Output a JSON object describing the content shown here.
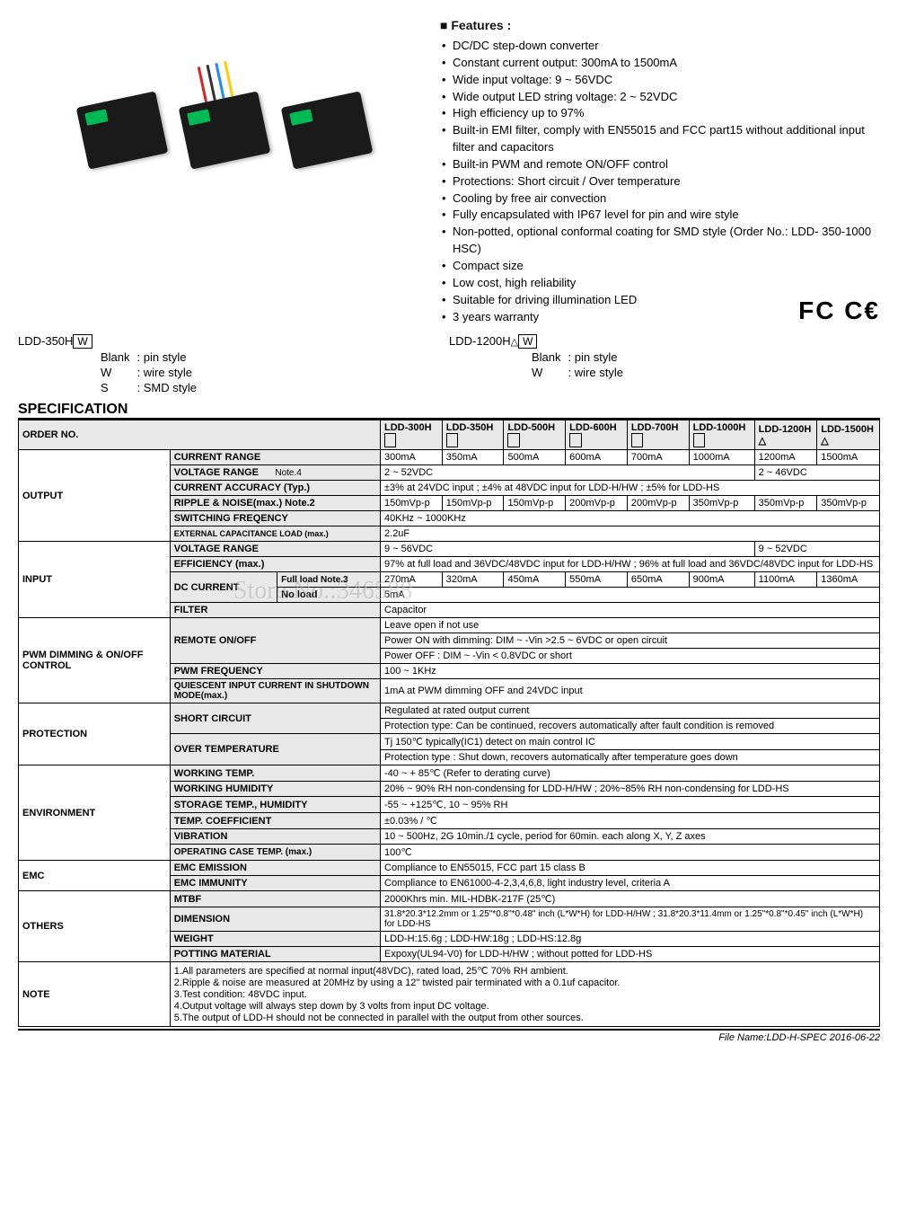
{
  "features": {
    "title": "Features :",
    "items": [
      "DC/DC step-down converter",
      "Constant current output: 300mA to 1500mA",
      "Wide input voltage: 9 ~ 56VDC",
      "Wide output LED string voltage: 2 ~ 52VDC",
      "High efficiency up to 97%",
      "Built-in EMI filter, comply with EN55015 and FCC part15 without additional input filter and capacitors",
      "Built-in PWM and remote ON/OFF control",
      "Protections: Short circuit / Over temperature",
      "Cooling by free air convection",
      "Fully encapsulated with IP67 level for pin and wire style",
      "Non-potted, optional conformal coating for SMD style (Order No.: LDD- 350-1000 HSC)",
      "Compact size",
      "Low cost, high reliability",
      "Suitable for driving illumination LED",
      "3 years warranty"
    ],
    "cert": "FC C€"
  },
  "models": {
    "left": {
      "name": "LDD-350H",
      "suffix": "W",
      "opts": [
        [
          "Blank",
          ": pin style"
        ],
        [
          "W",
          ": wire style"
        ],
        [
          "S",
          ": SMD style"
        ]
      ]
    },
    "right": {
      "name": "LDD-1200H",
      "suffix": "W",
      "opts": [
        [
          "Blank",
          ": pin style"
        ],
        [
          "W",
          ": wire style"
        ]
      ]
    }
  },
  "spec_title": "SPECIFICATION",
  "order_label": "ORDER NO.",
  "order": [
    "LDD-300H",
    "LDD-350H",
    "LDD-500H",
    "LDD-600H",
    "LDD-700H",
    "LDD-1000H",
    "LDD-1200H",
    "LDD-1500H"
  ],
  "output": {
    "cat": "OUTPUT",
    "current": {
      "label": "CURRENT RANGE",
      "vals": [
        "300mA",
        "350mA",
        "500mA",
        "600mA",
        "700mA",
        "1000mA",
        "1200mA",
        "1500mA"
      ]
    },
    "volt": {
      "label": "VOLTAGE RANGE",
      "note": "Note.4",
      "a": "2 ~ 52VDC",
      "b": "2 ~ 46VDC"
    },
    "acc": {
      "label": "CURRENT ACCURACY (Typ.)",
      "val": "±3% at 24VDC input ; ±4% at 48VDC input for LDD-H/HW ; ±5% for LDD-HS"
    },
    "ripple": {
      "label": "RIPPLE & NOISE(max.) Note.2",
      "vals": [
        "150mVp-p",
        "150mVp-p",
        "150mVp-p",
        "200mVp-p",
        "200mVp-p",
        "350mVp-p",
        "350mVp-p",
        "350mVp-p"
      ]
    },
    "freq": {
      "label": "SWITCHING FREQENCY",
      "val": "40KHz ~ 1000KHz"
    },
    "cap": {
      "label": "EXTERNAL CAPACITANCE LOAD (max.)",
      "val": "2.2uF"
    }
  },
  "input": {
    "cat": "INPUT",
    "volt": {
      "label": "VOLTAGE RANGE",
      "a": "9 ~ 56VDC",
      "b": "9 ~ 52VDC"
    },
    "eff": {
      "label": "EFFICIENCY (max.)",
      "val": "97% at full load and 36VDC/48VDC input for LDD-H/HW ; 96% at full load and 36VDC/48VDC input for LDD-HS"
    },
    "dc": {
      "label": "DC CURRENT",
      "full": "Full load   Note.3",
      "fullvals": [
        "270mA",
        "320mA",
        "450mA",
        "550mA",
        "650mA",
        "900mA",
        "1100mA",
        "1360mA"
      ],
      "no": "No load",
      "noval": "5mA"
    },
    "filter": {
      "label": "FILTER",
      "val": "Capacitor"
    }
  },
  "pwm": {
    "cat": "PWM DIMMING & ON/OFF CONTROL",
    "remote": {
      "label": "REMOTE ON/OFF",
      "r1": "Leave open if not use",
      "r2": "Power ON with dimming: DIM ~ -Vin >2.5 ~ 6VDC or open circuit",
      "r3": "Power OFF : DIM ~ -Vin < 0.8VDC or short"
    },
    "freq": {
      "label": "PWM FREQUENCY",
      "val": "100 ~ 1KHz"
    },
    "qi": {
      "label": "QUIESCENT INPUT CURRENT IN SHUTDOWN MODE(max.)",
      "val": "1mA at PWM dimming OFF and 24VDC input"
    }
  },
  "prot": {
    "cat": "PROTECTION",
    "sc": {
      "label": "SHORT CIRCUIT",
      "r1": "Regulated at rated output current",
      "r2": "Protection type: Can be continued, recovers automatically after fault condition is removed"
    },
    "ot": {
      "label": "OVER TEMPERATURE",
      "r1": "Tj 150℃ typically(IC1) detect on main control IC",
      "r2": "Protection type : Shut down, recovers automatically after temperature goes down"
    }
  },
  "env": {
    "cat": "ENVIRONMENT",
    "wt": {
      "label": "WORKING TEMP.",
      "val": "-40 ~ + 85℃ (Refer to derating curve)"
    },
    "wh": {
      "label": "WORKING HUMIDITY",
      "val": "20% ~ 90% RH  non-condensing for LDD-H/HW ; 20%~85% RH non-condensing for LDD-HS"
    },
    "st": {
      "label": "STORAGE TEMP., HUMIDITY",
      "val": "-55 ~ +125℃, 10 ~ 95% RH"
    },
    "tc": {
      "label": "TEMP. COEFFICIENT",
      "val": "±0.03% / ℃"
    },
    "vib": {
      "label": "VIBRATION",
      "val": "10 ~ 500Hz, 2G 10min./1 cycle, period for 60min. each along X, Y, Z axes"
    },
    "oct": {
      "label": "OPERATING CASE TEMP. (max.)",
      "val": "100℃"
    }
  },
  "emc": {
    "cat": "EMC",
    "em": {
      "label": "EMC EMISSION",
      "val": "Compliance to EN55015, FCC part 15 class B"
    },
    "im": {
      "label": "EMC IMMUNITY",
      "val": "Compliance to EN61000-4-2,3,4,6,8, light industry level, criteria A"
    }
  },
  "oth": {
    "cat": "OTHERS",
    "mtbf": {
      "label": "MTBF",
      "val": "2000Khrs min.  MIL-HDBK-217F (25℃)"
    },
    "dim": {
      "label": "DIMENSION",
      "val": "31.8*20.3*12.2mm or 1.25\"*0.8\"*0.48\" inch (L*W*H) for LDD-H/HW ; 31.8*20.3*11.4mm or 1.25\"*0.8\"*0.45\" inch (L*W*H) for LDD-HS"
    },
    "wgt": {
      "label": "WEIGHT",
      "val": "LDD-H:15.6g ; LDD-HW:18g ; LDD-HS:12.8g"
    },
    "pot": {
      "label": "POTTING MATERIAL",
      "val": "Expoxy(UL94-V0) for LDD-H/HW ; without potted for LDD-HS"
    }
  },
  "note": {
    "cat": "NOTE",
    "items": [
      "1.All parameters are specified at normal  input(48VDC), rated load, 25℃ 70% RH ambient.",
      "2.Ripple & noise are measured at 20MHz by using a 12\" twisted pair terminated with a 0.1uf capacitor.",
      "3.Test condition: 48VDC input.",
      "4.Output voltage will always step down by 3 volts from input DC voltage.",
      "5.The output of LDD-H should not be connected in parallel with the output from other sources."
    ]
  },
  "footer": "File Name:LDD-H-SPEC   2016-06-22",
  "watermark": "Store No.:346588"
}
